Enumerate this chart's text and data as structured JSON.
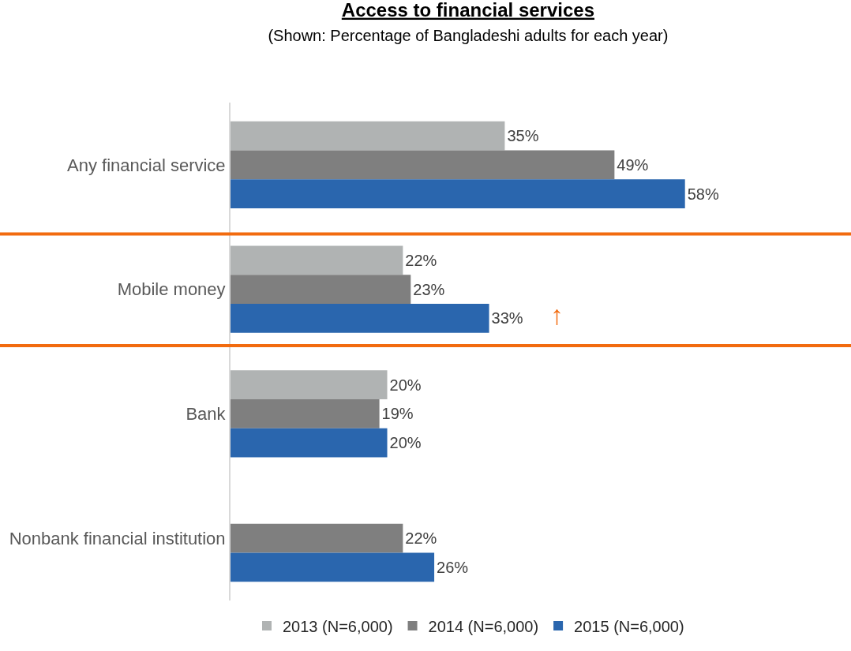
{
  "chart_data": {
    "type": "bar",
    "orientation": "horizontal",
    "title": "Access to financial services",
    "subtitle": "(Shown: Percentage of Bangladeshi adults for each year)",
    "categories": [
      "Any financial service",
      "Mobile money",
      "Bank",
      "Nonbank financial institution"
    ],
    "series": [
      {
        "name": "2013 (N=6,000)",
        "color": "#b0b3b3",
        "values": [
          35,
          22,
          20,
          null
        ],
        "value_labels": [
          "35%",
          "22%",
          "20%",
          null
        ]
      },
      {
        "name": "2014 (N=6,000)",
        "color": "#7f7f7f",
        "values": [
          49,
          23,
          19,
          22
        ],
        "value_labels": [
          "49%",
          "23%",
          "19%",
          "22%"
        ]
      },
      {
        "name": "2015 (N=6,000)",
        "color": "#2a66ae",
        "values": [
          58,
          33,
          20,
          26
        ],
        "value_labels": [
          "58%",
          "33%",
          "20%",
          "26%"
        ]
      }
    ],
    "annotations": [
      "↑"
    ],
    "tick_labels": "y",
    "legend": "bottom"
  }
}
